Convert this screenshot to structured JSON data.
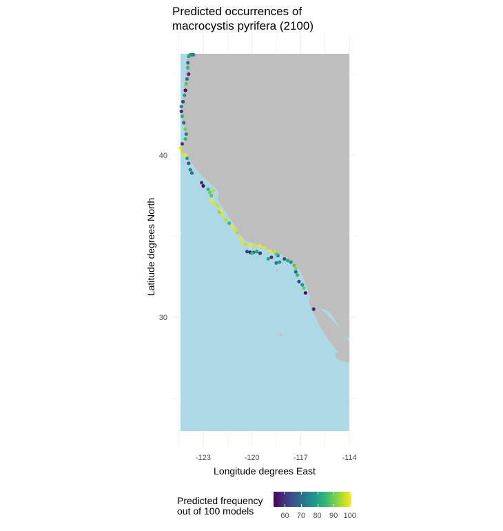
{
  "title_lines": [
    "Predicted occurrences of",
    "macrocystis pyrifera (2100)"
  ],
  "chart_data": {
    "type": "scatter",
    "title": "Predicted occurrences of macrocystis pyrifera (2100)",
    "xlabel": "Longitude degrees East",
    "ylabel": "Latitude degrees North",
    "xlim": [
      -124.5,
      -114
    ],
    "ylim": [
      23.5,
      46.5
    ],
    "x_ticks": [
      -123,
      -120,
      -117,
      -114
    ],
    "y_ticks": [
      30,
      40
    ],
    "grid": true,
    "land_color": "#bebebe",
    "ocean_color": "#add8e6",
    "color_scale": "viridis",
    "legend": {
      "title": "Predicted frequency out of 100 models",
      "title_lines": [
        "Predicted frequency",
        "out of 100 models"
      ],
      "placement": "bottom",
      "ticks": [
        60,
        70,
        80,
        90,
        100
      ],
      "range": [
        53,
        101
      ]
    },
    "points": [
      {
        "lon": -123.8,
        "lat": 46.2,
        "v": 78
      },
      {
        "lon": -123.9,
        "lat": 46.1,
        "v": 82
      },
      {
        "lon": -123.7,
        "lat": 46.2,
        "v": 65
      },
      {
        "lon": -123.6,
        "lat": 46.2,
        "v": 75
      },
      {
        "lon": -123.95,
        "lat": 45.7,
        "v": 70
      },
      {
        "lon": -123.95,
        "lat": 45.4,
        "v": 85
      },
      {
        "lon": -123.9,
        "lat": 45.0,
        "v": 60
      },
      {
        "lon": -124.0,
        "lat": 44.7,
        "v": 72
      },
      {
        "lon": -124.05,
        "lat": 44.4,
        "v": 88
      },
      {
        "lon": -124.1,
        "lat": 44.0,
        "v": 55
      },
      {
        "lon": -124.15,
        "lat": 43.7,
        "v": 80
      },
      {
        "lon": -124.25,
        "lat": 43.3,
        "v": 62
      },
      {
        "lon": -124.35,
        "lat": 43.0,
        "v": 75
      },
      {
        "lon": -124.35,
        "lat": 42.7,
        "v": 58
      },
      {
        "lon": -124.3,
        "lat": 42.4,
        "v": 83
      },
      {
        "lon": -124.2,
        "lat": 42.0,
        "v": 68
      },
      {
        "lon": -124.1,
        "lat": 41.6,
        "v": 90
      },
      {
        "lon": -124.05,
        "lat": 41.3,
        "v": 72
      },
      {
        "lon": -124.1,
        "lat": 41.0,
        "v": 85
      },
      {
        "lon": -124.3,
        "lat": 40.7,
        "v": 60
      },
      {
        "lon": -124.4,
        "lat": 40.45,
        "v": 99
      },
      {
        "lon": -124.3,
        "lat": 40.2,
        "v": 97
      },
      {
        "lon": -124.1,
        "lat": 40.0,
        "v": 100
      },
      {
        "lon": -124.0,
        "lat": 39.8,
        "v": 80
      },
      {
        "lon": -123.9,
        "lat": 39.5,
        "v": 65
      },
      {
        "lon": -123.8,
        "lat": 39.1,
        "v": 75
      },
      {
        "lon": -123.7,
        "lat": 38.9,
        "v": 70
      },
      {
        "lon": -123.1,
        "lat": 38.3,
        "v": 60
      },
      {
        "lon": -123.0,
        "lat": 38.1,
        "v": 55
      },
      {
        "lon": -122.7,
        "lat": 37.9,
        "v": 85
      },
      {
        "lon": -122.6,
        "lat": 37.7,
        "v": 90
      },
      {
        "lon": -122.4,
        "lat": 37.8,
        "v": 95
      },
      {
        "lon": -122.5,
        "lat": 37.5,
        "v": 88
      },
      {
        "lon": -122.5,
        "lat": 37.2,
        "v": 100
      },
      {
        "lon": -122.3,
        "lat": 37.0,
        "v": 98
      },
      {
        "lon": -122.1,
        "lat": 36.9,
        "v": 97
      },
      {
        "lon": -121.9,
        "lat": 36.6,
        "v": 100
      },
      {
        "lon": -122.0,
        "lat": 36.5,
        "v": 92
      },
      {
        "lon": -121.8,
        "lat": 36.3,
        "v": 99
      },
      {
        "lon": -121.6,
        "lat": 36.0,
        "v": 96
      },
      {
        "lon": -121.4,
        "lat": 35.8,
        "v": 85
      },
      {
        "lon": -121.2,
        "lat": 35.6,
        "v": 100
      },
      {
        "lon": -121.0,
        "lat": 35.4,
        "v": 98
      },
      {
        "lon": -120.9,
        "lat": 35.2,
        "v": 95
      },
      {
        "lon": -120.7,
        "lat": 34.9,
        "v": 100
      },
      {
        "lon": -120.6,
        "lat": 34.6,
        "v": 99
      },
      {
        "lon": -120.4,
        "lat": 34.5,
        "v": 97
      },
      {
        "lon": -120.1,
        "lat": 34.45,
        "v": 100
      },
      {
        "lon": -119.8,
        "lat": 34.4,
        "v": 98
      },
      {
        "lon": -119.5,
        "lat": 34.4,
        "v": 100
      },
      {
        "lon": -119.2,
        "lat": 34.3,
        "v": 99
      },
      {
        "lon": -118.9,
        "lat": 34.1,
        "v": 100
      },
      {
        "lon": -118.6,
        "lat": 34.05,
        "v": 97
      },
      {
        "lon": -118.5,
        "lat": 33.9,
        "v": 88
      },
      {
        "lon": -118.4,
        "lat": 33.8,
        "v": 75
      },
      {
        "lon": -120.3,
        "lat": 34.05,
        "v": 62
      },
      {
        "lon": -120.1,
        "lat": 34.0,
        "v": 55
      },
      {
        "lon": -119.9,
        "lat": 34.0,
        "v": 70
      },
      {
        "lon": -119.7,
        "lat": 34.05,
        "v": 80
      },
      {
        "lon": -119.5,
        "lat": 33.95,
        "v": 60
      },
      {
        "lon": -120.0,
        "lat": 33.95,
        "v": 85
      },
      {
        "lon": -118.5,
        "lat": 33.35,
        "v": 72
      },
      {
        "lon": -118.3,
        "lat": 33.4,
        "v": 78
      },
      {
        "lon": -118.0,
        "lat": 33.6,
        "v": 65
      },
      {
        "lon": -117.8,
        "lat": 33.5,
        "v": 82
      },
      {
        "lon": -117.6,
        "lat": 33.4,
        "v": 75
      },
      {
        "lon": -117.4,
        "lat": 33.2,
        "v": 88
      },
      {
        "lon": -117.3,
        "lat": 33.0,
        "v": 92
      },
      {
        "lon": -117.3,
        "lat": 32.8,
        "v": 70
      },
      {
        "lon": -117.2,
        "lat": 32.6,
        "v": 85
      },
      {
        "lon": -117.1,
        "lat": 32.2,
        "v": 62
      },
      {
        "lon": -116.9,
        "lat": 32.0,
        "v": 78
      },
      {
        "lon": -116.8,
        "lat": 31.8,
        "v": 90
      },
      {
        "lon": -116.7,
        "lat": 31.5,
        "v": 55
      },
      {
        "lon": -116.2,
        "lat": 30.5,
        "v": 58
      },
      {
        "lon": -119.0,
        "lat": 33.6,
        "v": 82
      },
      {
        "lon": -118.8,
        "lat": 33.7,
        "v": 60
      }
    ]
  }
}
